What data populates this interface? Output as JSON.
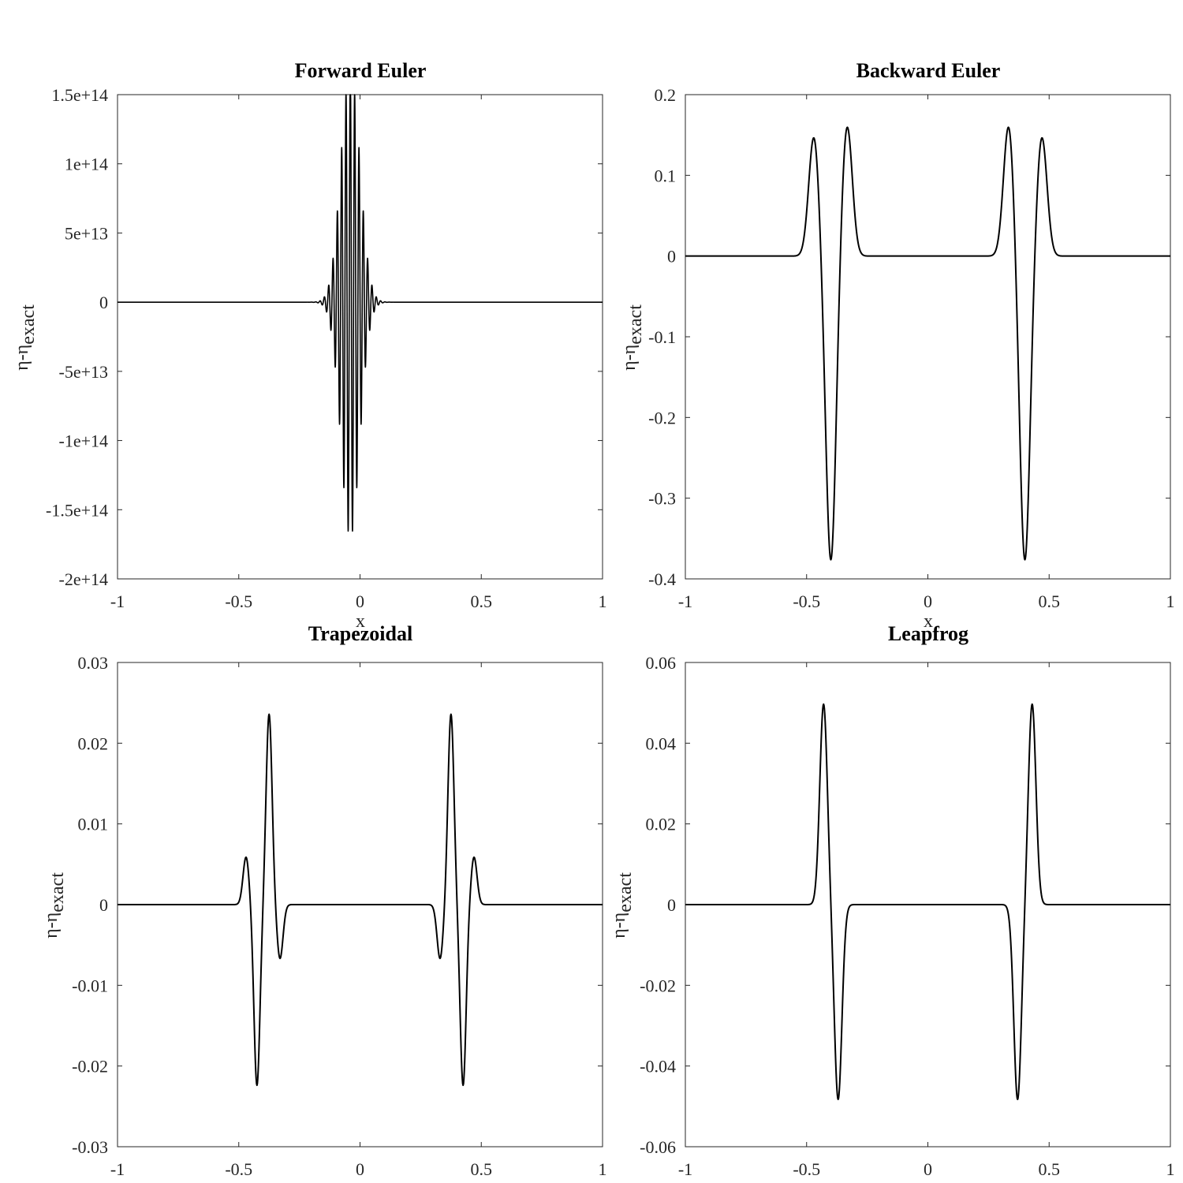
{
  "chart_data": [
    {
      "type": "line",
      "title": "Forward Euler",
      "xlabel": "x",
      "ylabel_main": "η-η",
      "ylabel_sub": "exact",
      "xlim": [
        -1,
        1
      ],
      "ylim": [
        -200000000000000.0,
        150000000000000.0
      ],
      "xticks": [
        -1,
        -0.5,
        0,
        0.5,
        1
      ],
      "xtick_labels": [
        "-1",
        "-0.5",
        "0",
        "0.5",
        "1"
      ],
      "yticks": [
        150000000000000.0,
        100000000000000.0,
        50000000000000.0,
        0,
        -50000000000000.0,
        -100000000000000.0,
        -150000000000000.0,
        -200000000000000.0
      ],
      "ytick_labels": [
        "1.5e+14",
        "1e+14",
        "5e+13",
        "0",
        "-5e+13",
        "-1e+14",
        "-1.5e+14",
        "-2e+14"
      ],
      "grid": false,
      "color": "#000000",
      "series": [
        {
          "shape": "oscillating packet",
          "center": -0.04,
          "sigma": 0.055,
          "wavenumber": 35,
          "amplitude": 170000000000000.0
        }
      ]
    },
    {
      "type": "line",
      "title": "Backward Euler",
      "xlabel": "x",
      "ylabel_main": "η-η",
      "ylabel_sub": "exact",
      "xlim": [
        -1,
        1
      ],
      "ylim": [
        -0.4,
        0.2
      ],
      "xticks": [
        -1,
        -0.5,
        0,
        0.5,
        1
      ],
      "xtick_labels": [
        "-1",
        "-0.5",
        "0",
        "0.5",
        "1"
      ],
      "yticks": [
        0.2,
        0.1,
        0,
        -0.1,
        -0.2,
        -0.3,
        -0.4
      ],
      "ytick_labels": [
        "0.2",
        "0.1",
        "0",
        "-0.1",
        "-0.2",
        "-0.3",
        "-0.4"
      ],
      "grid": false,
      "color": "#000000",
      "peaks": [
        {
          "x": -0.47,
          "y": 0.148
        },
        {
          "x": -0.4,
          "y": -0.378
        },
        {
          "x": -0.333,
          "y": 0.162
        },
        {
          "x": 0.333,
          "y": 0.162
        },
        {
          "x": 0.4,
          "y": -0.378
        },
        {
          "x": 0.47,
          "y": 0.148
        }
      ]
    },
    {
      "type": "line",
      "title": "Trapezoidal",
      "xlabel": "",
      "ylabel_main": "η-η",
      "ylabel_sub": "exact",
      "xlim": [
        -1,
        1
      ],
      "ylim": [
        -0.03,
        0.03
      ],
      "xticks": [
        -1,
        -0.5,
        0,
        0.5,
        1
      ],
      "xtick_labels": [
        "-1",
        "-0.5",
        "0",
        "0.5",
        "1"
      ],
      "yticks": [
        0.03,
        0.02,
        0.01,
        0,
        -0.01,
        -0.02,
        -0.03
      ],
      "ytick_labels": [
        "0.03",
        "0.02",
        "0.01",
        "0",
        "-0.01",
        "-0.02",
        "-0.03"
      ],
      "grid": false,
      "color": "#000000",
      "peaks": [
        {
          "x": -0.47,
          "y": 0.0059
        },
        {
          "x": -0.425,
          "y": -0.0224
        },
        {
          "x": -0.375,
          "y": 0.0236
        },
        {
          "x": -0.33,
          "y": -0.0067
        },
        {
          "x": 0.33,
          "y": -0.0067
        },
        {
          "x": 0.375,
          "y": 0.0236
        },
        {
          "x": 0.425,
          "y": -0.0224
        },
        {
          "x": 0.47,
          "y": 0.0059
        }
      ]
    },
    {
      "type": "line",
      "title": "Leapfrog",
      "xlabel": "",
      "ylabel_main": "η-η",
      "ylabel_sub": "exact",
      "xlim": [
        -1,
        1
      ],
      "ylim": [
        -0.06,
        0.06
      ],
      "xticks": [
        -1,
        -0.5,
        0,
        0.5,
        1
      ],
      "xtick_labels": [
        "-1",
        "-0.5",
        "0",
        "0.5",
        "1"
      ],
      "yticks": [
        0.06,
        0.04,
        0.02,
        0,
        -0.02,
        -0.04,
        -0.06
      ],
      "ytick_labels": [
        "0.06",
        "0.04",
        "0.02",
        "0",
        "-0.02",
        "-0.04",
        "-0.06"
      ],
      "grid": false,
      "color": "#000000",
      "peaks": [
        {
          "x": -0.43,
          "y": 0.0497
        },
        {
          "x": -0.37,
          "y": -0.0483
        },
        {
          "x": 0.37,
          "y": -0.0483
        },
        {
          "x": 0.43,
          "y": 0.0497
        }
      ]
    }
  ]
}
